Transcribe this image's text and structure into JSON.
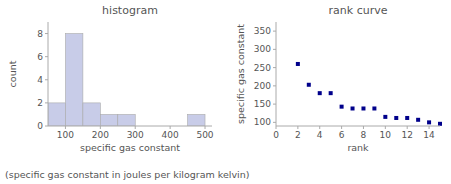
{
  "chart_data": [
    {
      "type": "histogram",
      "title": "histogram",
      "x_label": "specific gas constant",
      "y_label": "count",
      "bins": [
        50,
        100,
        150,
        200,
        250,
        300,
        350,
        400,
        450,
        500
      ],
      "values": [
        2,
        8,
        2,
        1,
        1,
        0,
        0,
        0,
        1
      ],
      "color": "#c8cce8",
      "xlim": [
        50,
        520
      ],
      "ylim": [
        0,
        9
      ],
      "xticks": [
        100,
        200,
        300,
        400,
        500
      ],
      "yticks": [
        0,
        2,
        4,
        6,
        8
      ],
      "grid": false
    },
    {
      "type": "scatter",
      "title": "rank curve",
      "x_label": "rank",
      "y_label": "specific gas constant",
      "x": [
        2,
        3,
        4,
        5,
        6,
        7,
        8,
        9,
        10,
        11,
        12,
        13,
        14,
        15
      ],
      "values": [
        260,
        203,
        180,
        180,
        143,
        138,
        138,
        138,
        115,
        112,
        112,
        107,
        100,
        96
      ],
      "color": "#00008B",
      "marker": "square",
      "xlim": [
        0,
        15
      ],
      "ylim": [
        90,
        375
      ],
      "xticks": [
        0,
        2,
        4,
        6,
        8,
        10,
        12,
        14
      ],
      "yticks": [
        100,
        150,
        200,
        250,
        300,
        350
      ],
      "grid": false
    }
  ],
  "caption": "(specific gas constant in joules per kilogram kelvin)"
}
